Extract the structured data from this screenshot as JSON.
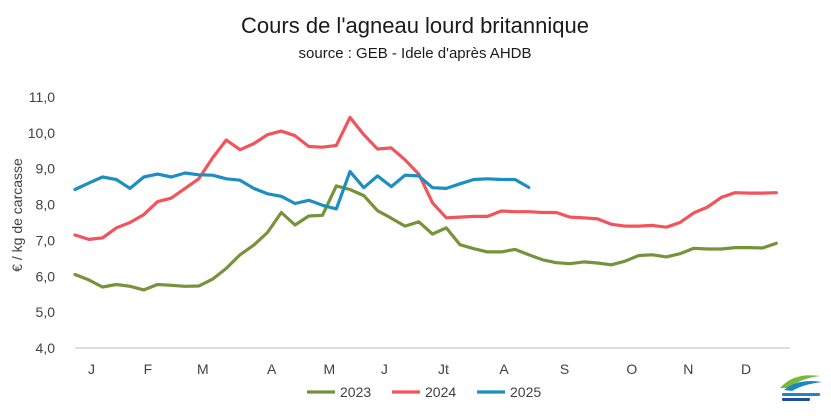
{
  "chart_data": {
    "type": "line",
    "title": "Cours de l'agneau lourd britannique",
    "subtitle": "source : GEB - Idele d'après AHDB",
    "ylabel": "€ / kg de carcasse",
    "xlabel": "",
    "ylim": [
      4.0,
      11.0
    ],
    "yticks": [
      "4,0",
      "5,0",
      "6,0",
      "7,0",
      "8,0",
      "9,0",
      "10,0",
      "11,0"
    ],
    "xlim": [
      1,
      53
    ],
    "xticks": [
      {
        "label": "J",
        "week": 2.2
      },
      {
        "label": "F",
        "week": 6.3
      },
      {
        "label": "M",
        "week": 10.3
      },
      {
        "label": "A",
        "week": 15.3
      },
      {
        "label": "M",
        "week": 19.5
      },
      {
        "label": "J",
        "week": 23.5
      },
      {
        "label": "Jt",
        "week": 27.8
      },
      {
        "label": "A",
        "week": 32.2
      },
      {
        "label": "S",
        "week": 36.6
      },
      {
        "label": "O",
        "week": 41.5
      },
      {
        "label": "N",
        "week": 45.6
      },
      {
        "label": "D",
        "week": 49.8
      }
    ],
    "grid": false,
    "legend_position": "bottom",
    "series": [
      {
        "name": "2023",
        "color": "#76933c",
        "x": [
          1,
          2,
          3,
          4,
          5,
          6,
          7,
          8,
          9,
          10,
          11,
          12,
          13,
          14,
          15,
          16,
          17,
          18,
          19,
          20,
          21,
          22,
          23,
          24,
          25,
          26,
          27,
          28,
          29,
          30,
          31,
          32,
          33,
          34,
          35,
          36,
          37,
          38,
          39,
          40,
          41,
          42,
          43,
          44,
          45,
          46,
          47,
          48,
          49,
          50,
          51,
          52,
          53
        ],
        "values": [
          6.05,
          5.9,
          5.7,
          5.77,
          5.72,
          5.62,
          5.77,
          5.75,
          5.72,
          5.73,
          5.92,
          6.22,
          6.6,
          6.87,
          7.22,
          7.78,
          7.43,
          7.68,
          7.7,
          8.52,
          8.42,
          8.25,
          7.83,
          7.62,
          7.4,
          7.52,
          7.18,
          7.35,
          6.88,
          6.77,
          6.68,
          6.68,
          6.75,
          6.6,
          6.46,
          6.38,
          6.35,
          6.4,
          6.37,
          6.32,
          6.42,
          6.58,
          6.6,
          6.54,
          6.63,
          6.78,
          6.76,
          6.76,
          6.8,
          6.8,
          6.79,
          6.92,
          null
        ]
      },
      {
        "name": "2024",
        "color": "#f2545b",
        "x": [
          1,
          2,
          3,
          4,
          5,
          6,
          7,
          8,
          9,
          10,
          11,
          12,
          13,
          14,
          15,
          16,
          17,
          18,
          19,
          20,
          21,
          22,
          23,
          24,
          25,
          26,
          27,
          28,
          29,
          30,
          31,
          32,
          33,
          34,
          35,
          36,
          37,
          38,
          39,
          40,
          41,
          42,
          43,
          44,
          45,
          46,
          47,
          48,
          49,
          50,
          51,
          52,
          53
        ],
        "values": [
          7.15,
          7.03,
          7.07,
          7.35,
          7.5,
          7.72,
          8.08,
          8.18,
          8.45,
          8.72,
          9.3,
          9.8,
          9.53,
          9.7,
          9.95,
          10.05,
          9.92,
          9.62,
          9.6,
          9.65,
          10.43,
          9.95,
          9.55,
          9.58,
          9.25,
          8.85,
          8.05,
          7.63,
          7.65,
          7.67,
          7.67,
          7.82,
          7.8,
          7.8,
          7.78,
          7.78,
          7.65,
          7.63,
          7.6,
          7.45,
          7.4,
          7.4,
          7.42,
          7.37,
          7.5,
          7.77,
          7.93,
          8.2,
          8.33,
          8.32,
          8.32,
          8.33,
          null
        ]
      },
      {
        "name": "2025",
        "color": "#1b8ec2",
        "x": [
          1,
          2,
          3,
          4,
          5,
          6,
          7,
          8,
          9,
          10,
          11,
          12,
          13,
          14,
          15,
          16,
          17,
          18,
          19,
          20,
          21,
          22,
          23,
          24,
          25,
          26,
          27,
          28,
          29,
          30,
          31,
          32,
          33,
          34
        ],
        "values": [
          8.42,
          8.6,
          8.77,
          8.7,
          8.45,
          8.77,
          8.85,
          8.77,
          8.88,
          8.83,
          8.82,
          8.72,
          8.68,
          8.45,
          8.3,
          8.23,
          8.03,
          8.12,
          7.98,
          7.88,
          8.92,
          8.47,
          8.8,
          8.5,
          8.82,
          8.8,
          8.47,
          8.45,
          8.58,
          8.7,
          8.72,
          8.7,
          8.7,
          8.48
        ]
      }
    ]
  }
}
